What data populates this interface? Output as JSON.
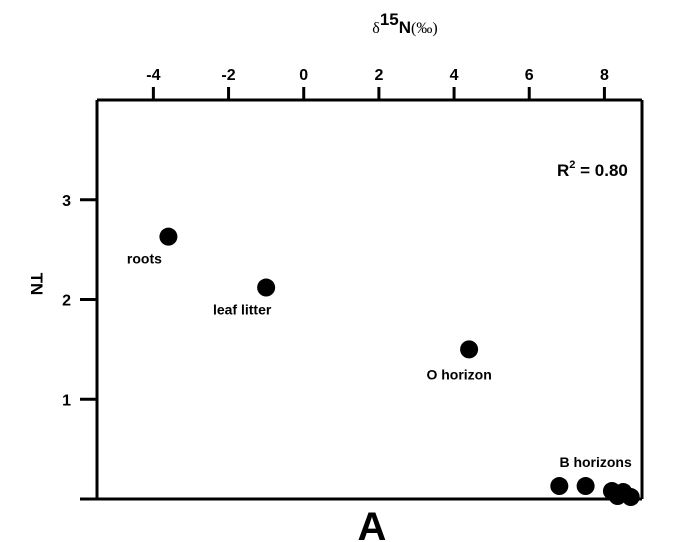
{
  "chart_data": {
    "type": "scatter",
    "x_axis": {
      "label_symbol": "δ",
      "label_superscript": "15",
      "label_element": "N",
      "label_unit": "(‰)",
      "position": "top",
      "range": [
        -5.5,
        9
      ],
      "ticks": [
        -4,
        -2,
        0,
        2,
        4,
        6,
        8
      ],
      "tick_labels": [
        "-4",
        "-2",
        "0",
        "2",
        "4",
        "6",
        "8"
      ]
    },
    "y_axis": {
      "label": "TN",
      "range": [
        0,
        4
      ],
      "ticks": [
        1,
        2,
        3
      ],
      "tick_labels": [
        "1",
        "2",
        "3"
      ]
    },
    "points": [
      {
        "x": -3.6,
        "y": 2.63
      },
      {
        "x": -1.0,
        "y": 2.12
      },
      {
        "x": 4.4,
        "y": 1.5
      },
      {
        "x": 6.8,
        "y": 0.13
      },
      {
        "x": 7.5,
        "y": 0.13
      },
      {
        "x": 8.2,
        "y": 0.08
      },
      {
        "x": 8.5,
        "y": 0.07
      },
      {
        "x": 8.35,
        "y": 0.03
      },
      {
        "x": 8.7,
        "y": 0.02
      }
    ],
    "point_labels": [
      {
        "text": "roots",
        "x": -3.6,
        "y": 2.63,
        "anchor": "below-left"
      },
      {
        "text": "leaf litter",
        "x": -1.0,
        "y": 2.12,
        "anchor": "below-left"
      },
      {
        "text": "O horizon",
        "x": 4.4,
        "y": 1.5,
        "anchor": "below"
      },
      {
        "text": "B horizons",
        "x": 7.5,
        "y": 0.13,
        "anchor": "above"
      }
    ],
    "annotation": {
      "r2_label": "R",
      "r2_sup": "2",
      "r2_value": " = 0.80"
    },
    "panel_label": "A",
    "grid": false,
    "legend": "none",
    "marker_color": "#000000"
  }
}
